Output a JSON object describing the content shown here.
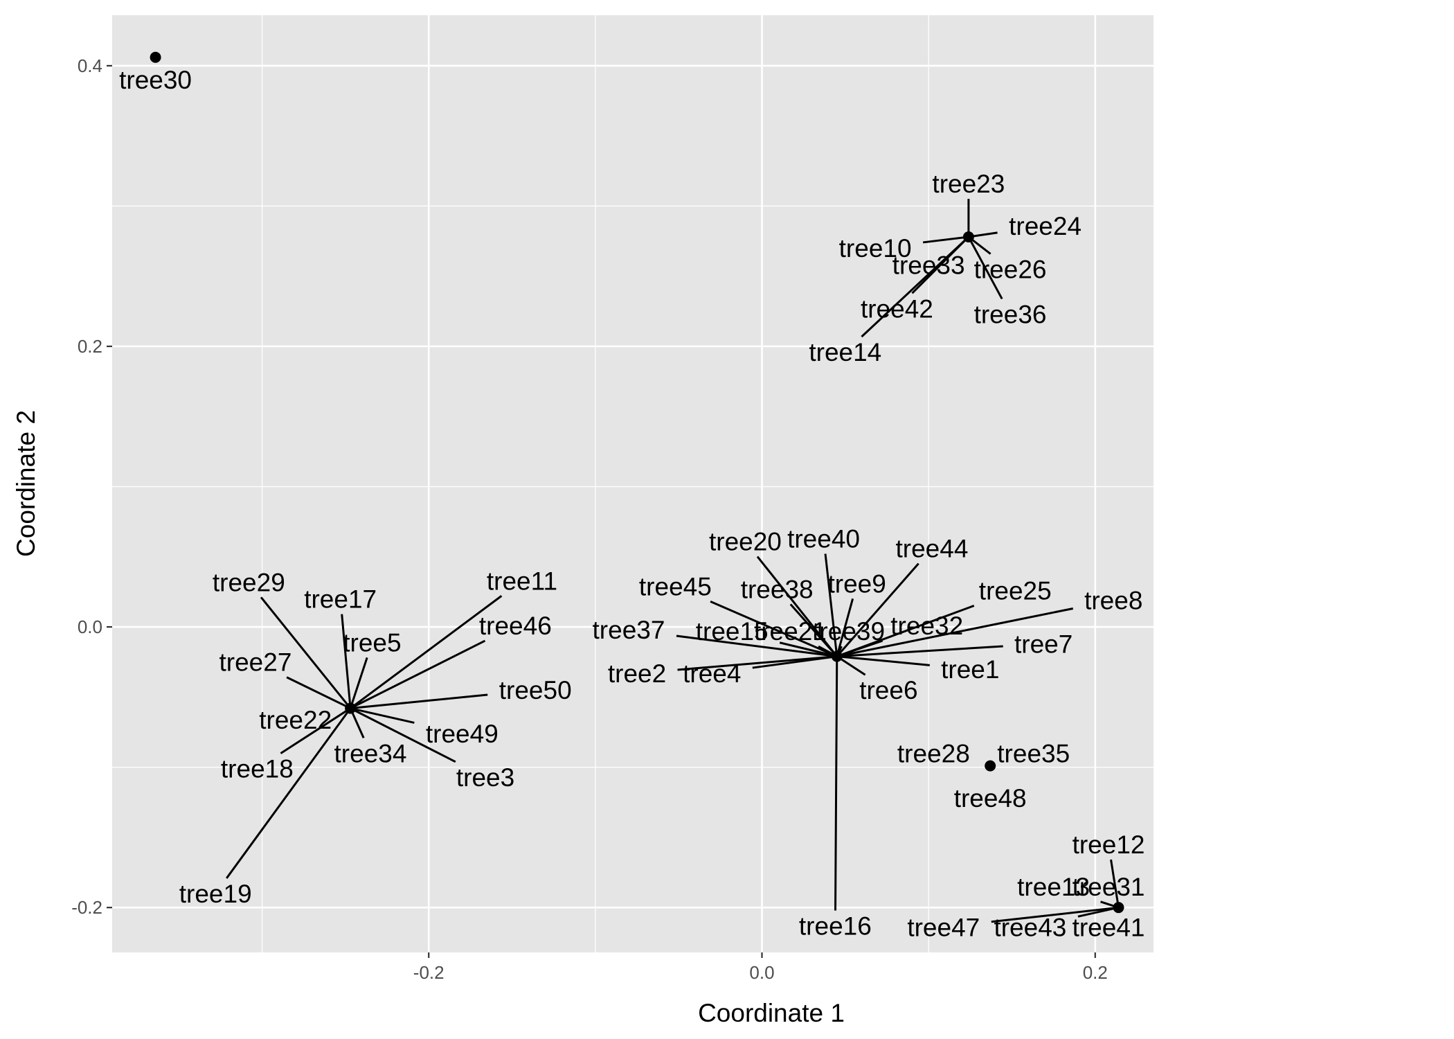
{
  "chart_data": {
    "type": "scatter",
    "title": "",
    "xlabel": "Coordinate 1",
    "ylabel": "Coordinate 2",
    "xlim": [
      -0.39,
      0.235
    ],
    "ylim": [
      -0.232,
      0.436
    ],
    "x_ticks": [
      -0.2,
      0.0,
      0.2
    ],
    "y_ticks": [
      -0.2,
      0.0,
      0.2,
      0.4
    ],
    "x_tick_labels": [
      "-0.2",
      "0.0",
      "0.2"
    ],
    "y_tick_labels": [
      "-0.2",
      "0.0",
      "0.2",
      "0.4"
    ],
    "grid": true,
    "panel_color": "#e5e5e5",
    "gridline_color": "#ffffff",
    "point_color": "#000000",
    "points": [
      {
        "x": -0.364,
        "y": 0.406
      },
      {
        "x": -0.247,
        "y": -0.058
      },
      {
        "x": 0.045,
        "y": -0.021
      },
      {
        "x": 0.124,
        "y": 0.278
      },
      {
        "x": 0.137,
        "y": -0.099
      },
      {
        "x": 0.214,
        "y": -0.2
      }
    ],
    "labels": [
      {
        "text": "tree30",
        "x": -0.364,
        "y": 0.406,
        "lx": -0.364,
        "ly": 0.39,
        "line": false
      },
      {
        "text": "tree29",
        "x": -0.247,
        "y": -0.058,
        "lx": -0.308,
        "ly": 0.032,
        "line": true
      },
      {
        "text": "tree17",
        "x": -0.247,
        "y": -0.058,
        "lx": -0.253,
        "ly": 0.02,
        "line": true
      },
      {
        "text": "tree11",
        "x": -0.247,
        "y": -0.058,
        "lx": -0.144,
        "ly": 0.033,
        "line": true
      },
      {
        "text": "tree46",
        "x": -0.247,
        "y": -0.058,
        "lx": -0.148,
        "ly": 0.001,
        "line": true
      },
      {
        "text": "tree5",
        "x": -0.247,
        "y": -0.058,
        "lx": -0.234,
        "ly": -0.011,
        "line": true
      },
      {
        "text": "tree27",
        "x": -0.247,
        "y": -0.058,
        "lx": -0.304,
        "ly": -0.025,
        "line": true
      },
      {
        "text": "tree50",
        "x": -0.247,
        "y": -0.058,
        "lx": -0.136,
        "ly": -0.045,
        "line": true
      },
      {
        "text": "tree22",
        "x": -0.247,
        "y": -0.058,
        "lx": -0.28,
        "ly": -0.066,
        "line": false
      },
      {
        "text": "tree49",
        "x": -0.247,
        "y": -0.058,
        "lx": -0.18,
        "ly": -0.076,
        "line": true
      },
      {
        "text": "tree34",
        "x": -0.247,
        "y": -0.058,
        "lx": -0.235,
        "ly": -0.09,
        "line": true
      },
      {
        "text": "tree3",
        "x": -0.247,
        "y": -0.058,
        "lx": -0.166,
        "ly": -0.107,
        "line": true
      },
      {
        "text": "tree18",
        "x": -0.247,
        "y": -0.058,
        "lx": -0.303,
        "ly": -0.101,
        "line": true
      },
      {
        "text": "tree19",
        "x": -0.247,
        "y": -0.058,
        "lx": -0.328,
        "ly": -0.19,
        "line": true
      },
      {
        "text": "tree20",
        "x": 0.045,
        "y": -0.021,
        "lx": -0.01,
        "ly": 0.061,
        "line": true
      },
      {
        "text": "tree40",
        "x": 0.045,
        "y": -0.021,
        "lx": 0.037,
        "ly": 0.063,
        "line": true
      },
      {
        "text": "tree44",
        "x": 0.045,
        "y": -0.021,
        "lx": 0.102,
        "ly": 0.056,
        "line": true
      },
      {
        "text": "tree45",
        "x": 0.045,
        "y": -0.021,
        "lx": -0.052,
        "ly": 0.029,
        "line": true
      },
      {
        "text": "tree38",
        "x": 0.045,
        "y": -0.021,
        "lx": 0.009,
        "ly": 0.027,
        "line": true
      },
      {
        "text": "tree9",
        "x": 0.045,
        "y": -0.021,
        "lx": 0.057,
        "ly": 0.031,
        "line": true
      },
      {
        "text": "tree25",
        "x": 0.045,
        "y": -0.021,
        "lx": 0.152,
        "ly": 0.026,
        "line": true
      },
      {
        "text": "tree8",
        "x": 0.045,
        "y": -0.021,
        "lx": 0.211,
        "ly": 0.019,
        "line": true
      },
      {
        "text": "tree37",
        "x": 0.045,
        "y": -0.021,
        "lx": -0.08,
        "ly": -0.002,
        "line": true
      },
      {
        "text": "tree15",
        "x": 0.045,
        "y": -0.021,
        "lx": -0.018,
        "ly": -0.003,
        "line": true
      },
      {
        "text": "tree21",
        "x": 0.045,
        "y": -0.021,
        "lx": 0.017,
        "ly": -0.003,
        "line": true
      },
      {
        "text": "tree39",
        "x": 0.045,
        "y": -0.021,
        "lx": 0.052,
        "ly": -0.003,
        "line": true
      },
      {
        "text": "tree32",
        "x": 0.045,
        "y": -0.021,
        "lx": 0.099,
        "ly": 0.001,
        "line": true
      },
      {
        "text": "tree7",
        "x": 0.045,
        "y": -0.021,
        "lx": 0.169,
        "ly": -0.012,
        "line": true
      },
      {
        "text": "tree2",
        "x": 0.045,
        "y": -0.021,
        "lx": -0.075,
        "ly": -0.033,
        "line": true
      },
      {
        "text": "tree4",
        "x": 0.045,
        "y": -0.021,
        "lx": -0.03,
        "ly": -0.033,
        "line": true
      },
      {
        "text": "tree1",
        "x": 0.045,
        "y": -0.021,
        "lx": 0.125,
        "ly": -0.03,
        "line": true
      },
      {
        "text": "tree6",
        "x": 0.045,
        "y": -0.021,
        "lx": 0.076,
        "ly": -0.045,
        "line": true
      },
      {
        "text": "tree16",
        "x": 0.045,
        "y": -0.021,
        "lx": 0.044,
        "ly": -0.213,
        "line": true
      },
      {
        "text": "tree23",
        "x": 0.124,
        "y": 0.278,
        "lx": 0.124,
        "ly": 0.316,
        "line": true
      },
      {
        "text": "tree24",
        "x": 0.124,
        "y": 0.278,
        "lx": 0.17,
        "ly": 0.286,
        "line": true
      },
      {
        "text": "tree10",
        "x": 0.124,
        "y": 0.278,
        "lx": 0.068,
        "ly": 0.27,
        "line": true
      },
      {
        "text": "tree33",
        "x": 0.124,
        "y": 0.278,
        "lx": 0.1,
        "ly": 0.258,
        "line": false
      },
      {
        "text": "tree26",
        "x": 0.124,
        "y": 0.278,
        "lx": 0.149,
        "ly": 0.255,
        "line": true
      },
      {
        "text": "tree42",
        "x": 0.124,
        "y": 0.278,
        "lx": 0.081,
        "ly": 0.227,
        "line": true
      },
      {
        "text": "tree36",
        "x": 0.124,
        "y": 0.278,
        "lx": 0.149,
        "ly": 0.223,
        "line": true
      },
      {
        "text": "tree14",
        "x": 0.124,
        "y": 0.278,
        "lx": 0.05,
        "ly": 0.196,
        "line": true
      },
      {
        "text": "tree28",
        "x": 0.137,
        "y": -0.099,
        "lx": 0.103,
        "ly": -0.09,
        "line": false
      },
      {
        "text": "tree35",
        "x": 0.137,
        "y": -0.099,
        "lx": 0.163,
        "ly": -0.09,
        "line": false
      },
      {
        "text": "tree48",
        "x": 0.137,
        "y": -0.099,
        "lx": 0.137,
        "ly": -0.122,
        "line": false
      },
      {
        "text": "tree12",
        "x": 0.214,
        "y": -0.2,
        "lx": 0.208,
        "ly": -0.155,
        "line": true
      },
      {
        "text": "tree13",
        "x": 0.214,
        "y": -0.2,
        "lx": 0.175,
        "ly": -0.185,
        "line": true
      },
      {
        "text": "tree31",
        "x": 0.214,
        "y": -0.2,
        "lx": 0.208,
        "ly": -0.185,
        "line": false
      },
      {
        "text": "tree47",
        "x": 0.214,
        "y": -0.2,
        "lx": 0.109,
        "ly": -0.214,
        "line": true
      },
      {
        "text": "tree43",
        "x": 0.214,
        "y": -0.2,
        "lx": 0.161,
        "ly": -0.214,
        "line": true
      },
      {
        "text": "tree41",
        "x": 0.214,
        "y": -0.2,
        "lx": 0.208,
        "ly": -0.214,
        "line": true
      }
    ]
  }
}
